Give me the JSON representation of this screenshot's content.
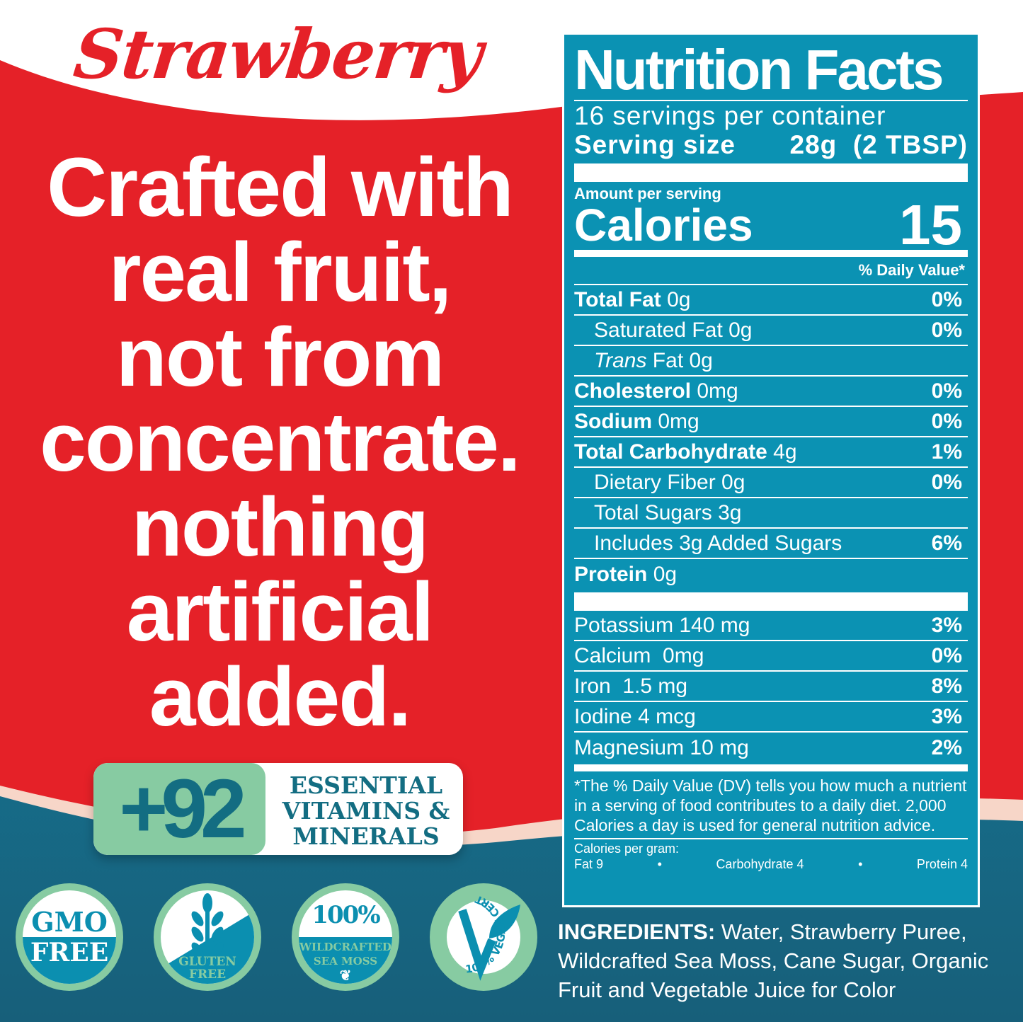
{
  "brand": {
    "flavor": "Strawberry"
  },
  "slogan": [
    "Crafted with",
    "real fruit,",
    "not from",
    "concentrate.",
    "nothing",
    "artificial",
    "added."
  ],
  "badge": {
    "count": "+92",
    "text": [
      "ESSENTIAL",
      "VITAMINS &",
      "MINERALS"
    ]
  },
  "seals": [
    {
      "name": "gmo-free",
      "lines": [
        "GMO",
        "FREE"
      ]
    },
    {
      "name": "gluten-free",
      "lines": [
        "GLUTEN",
        "FREE"
      ],
      "icon": "wheat-crossed-icon"
    },
    {
      "name": "sea-moss",
      "lines": [
        "100%",
        "WILDCRAFTED",
        "SEA MOSS"
      ],
      "icon": "leaf-icon"
    },
    {
      "name": "vegan",
      "lines": [
        "100% VEGAN CERTIFIED"
      ],
      "icon": "v-leaf-icon"
    }
  ],
  "colors": {
    "red": "#e52128",
    "teal": "#0b92b3",
    "green": "#87cba2",
    "dark_teal": "#136d82"
  },
  "nutrition": {
    "title": "Nutrition Facts",
    "servings": "16 servings per container",
    "serving_size_label": "Serving size",
    "serving_size_value": "28g  (2 TBSP)",
    "amount_per_serving": "Amount per serving",
    "calories_label": "Calories",
    "calories_value": "15",
    "daily_value_header": "% Daily Value*",
    "rows": [
      {
        "bold": "Total Fat",
        "rest": " 0g",
        "dv": "0%",
        "indent": false
      },
      {
        "bold": "",
        "rest": "Saturated Fat 0g",
        "dv": "0%",
        "indent": true
      },
      {
        "italic": "Trans",
        "rest": " Fat 0g",
        "dv": "",
        "indent": true
      },
      {
        "bold": "Cholesterol",
        "rest": " 0mg",
        "dv": "0%",
        "indent": false
      },
      {
        "bold": "Sodium",
        "rest": " 0mg",
        "dv": "0%",
        "indent": false
      },
      {
        "bold": "Total Carbohydrate",
        "rest": " 4g",
        "dv": "1%",
        "indent": false
      },
      {
        "bold": "",
        "rest": "Dietary Fiber 0g",
        "dv": "0%",
        "indent": true
      },
      {
        "bold": "",
        "rest": "Total Sugars 3g",
        "dv": "",
        "indent": true
      },
      {
        "bold": "",
        "rest": "Includes 3g Added Sugars",
        "dv": "6%",
        "indent": true
      },
      {
        "bold": "Protein",
        "rest": " 0g",
        "dv": "",
        "indent": false
      }
    ],
    "minerals": [
      {
        "label": "Potassium 140 mg",
        "dv": "3%"
      },
      {
        "label": "Calcium  0mg",
        "dv": "0%"
      },
      {
        "label": "Iron  1.5 mg",
        "dv": "8%"
      },
      {
        "label": "Iodine 4 mcg",
        "dv": "3%"
      },
      {
        "label": "Magnesium 10 mg",
        "dv": "2%"
      }
    ],
    "footnote": "*The % Daily Value (DV) tells you how much a nutrient in a serving of food contributes to a daily diet.  2,000 Calories a day is used for general nutrition advice.",
    "calories_per_gram": "Calories per gram:",
    "cpg_items": [
      "Fat 9",
      "•",
      "Carbohydrate 4",
      "•",
      "Protein 4"
    ]
  },
  "ingredients": {
    "label": "INGREDIENTS:",
    "text": " Water, Strawberry Puree, Wildcrafted Sea Moss, Cane Sugar, Organic Fruit and Vegetable Juice for Color"
  }
}
